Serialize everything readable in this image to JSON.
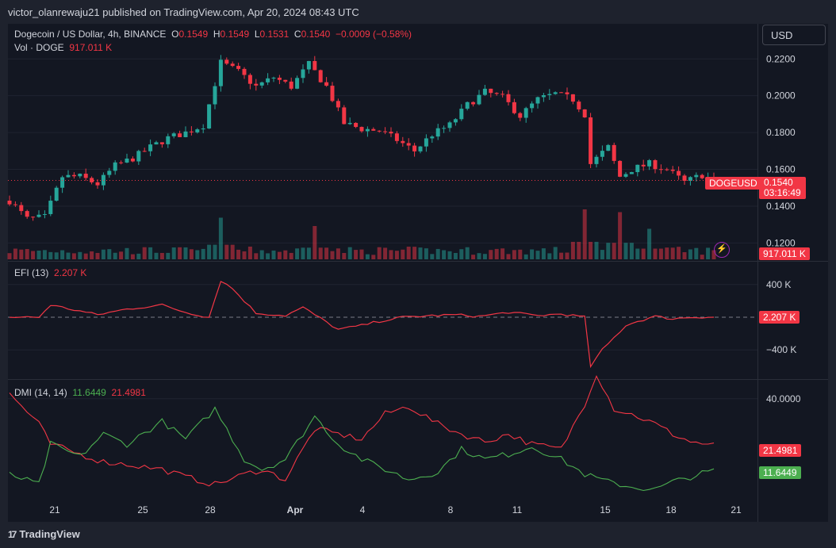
{
  "header": {
    "published": "victor_olanrewaju21 published on TradingView.com, Apr 20, 2024 08:43 UTC"
  },
  "legend": {
    "symbol": "Dogecoin / US Dollar, 4h, BINANCE",
    "o_label": "O",
    "o_value": "0.1549",
    "h_label": "H",
    "h_value": "0.1549",
    "l_label": "L",
    "l_value": "0.1531",
    "c_label": "C",
    "c_value": "0.1540",
    "change": "−0.0009 (−0.58%)",
    "vol_label": "Vol · DOGE",
    "vol_value": "917.011 K",
    "efi_label": "EFI (13)",
    "efi_value": "2.207 K",
    "dmi_label": "DMI (14, 14)",
    "dmi_plus": "11.6449",
    "dmi_minus": "21.4981"
  },
  "toolbar": {
    "currency_label": "USD"
  },
  "price_tag": {
    "symbol": "DOGEUSD",
    "price": "0.1540",
    "countdown": "03:16:49"
  },
  "volume_tag": "917.011 K",
  "efi_tag": "2.207 K",
  "dmi_tags": {
    "minus": "21.4981",
    "plus": "11.6449"
  },
  "colors": {
    "up": "#26a69a",
    "down": "#f23645",
    "efi": "#f23645",
    "dmi_plus": "#4caf50",
    "dmi_minus": "#f23645",
    "bg": "#131722"
  },
  "footer": {
    "brand": "TradingView"
  },
  "chart_data": {
    "type": "candlestick",
    "price_axis": {
      "ticks": [
        "0.2200",
        "0.2000",
        "0.1800",
        "0.1600",
        "0.1400",
        "0.1200"
      ],
      "range": [
        0.115,
        0.227
      ]
    },
    "efi_axis": {
      "ticks": [
        "400 K",
        "−400 K"
      ]
    },
    "dmi_axis": {
      "ticks": [
        "40.0000"
      ]
    },
    "x_ticks": [
      "21",
      "25",
      "28",
      "Apr",
      "4",
      "8",
      "11",
      "15",
      "18",
      "21"
    ],
    "bars": 113,
    "close_anchors": [
      [
        0,
        0.143
      ],
      [
        3,
        0.133
      ],
      [
        6,
        0.134
      ],
      [
        9,
        0.156
      ],
      [
        12,
        0.156
      ],
      [
        15,
        0.152
      ],
      [
        18,
        0.162
      ],
      [
        21,
        0.166
      ],
      [
        24,
        0.172
      ],
      [
        27,
        0.177
      ],
      [
        30,
        0.18
      ],
      [
        33,
        0.184
      ],
      [
        36,
        0.218
      ],
      [
        39,
        0.213
      ],
      [
        42,
        0.205
      ],
      [
        45,
        0.21
      ],
      [
        48,
        0.205
      ],
      [
        51,
        0.217
      ],
      [
        54,
        0.205
      ],
      [
        57,
        0.185
      ],
      [
        60,
        0.182
      ],
      [
        63,
        0.181
      ],
      [
        66,
        0.176
      ],
      [
        69,
        0.17
      ],
      [
        72,
        0.179
      ],
      [
        75,
        0.184
      ],
      [
        78,
        0.195
      ],
      [
        81,
        0.202
      ],
      [
        84,
        0.199
      ],
      [
        87,
        0.189
      ],
      [
        90,
        0.198
      ],
      [
        93,
        0.201
      ],
      [
        96,
        0.198
      ],
      [
        98,
        0.19
      ],
      [
        99,
        0.163
      ],
      [
        102,
        0.172
      ],
      [
        104,
        0.156
      ],
      [
        106,
        0.16
      ],
      [
        109,
        0.163
      ],
      [
        112,
        0.16
      ],
      [
        115,
        0.153
      ],
      [
        118,
        0.157
      ],
      [
        120,
        0.154
      ]
    ],
    "volume_spikes": [
      [
        36,
        0.75
      ],
      [
        52,
        0.6
      ],
      [
        98,
        0.9
      ],
      [
        104,
        0.85
      ],
      [
        109,
        0.55
      ]
    ],
    "efi_anchors": [
      [
        0,
        0
      ],
      [
        5,
        0
      ],
      [
        7,
        150
      ],
      [
        15,
        30
      ],
      [
        20,
        100
      ],
      [
        26,
        150
      ],
      [
        30,
        60
      ],
      [
        34,
        0
      ],
      [
        36,
        450
      ],
      [
        38,
        350
      ],
      [
        40,
        200
      ],
      [
        42,
        50
      ],
      [
        47,
        20
      ],
      [
        50,
        120
      ],
      [
        52,
        30
      ],
      [
        56,
        -150
      ],
      [
        60,
        -100
      ],
      [
        63,
        -50
      ],
      [
        67,
        0
      ],
      [
        72,
        20
      ],
      [
        76,
        30
      ],
      [
        80,
        10
      ],
      [
        85,
        60
      ],
      [
        90,
        20
      ],
      [
        94,
        40
      ],
      [
        98,
        0
      ],
      [
        99,
        -600
      ],
      [
        101,
        -400
      ],
      [
        103,
        -250
      ],
      [
        105,
        -100
      ],
      [
        107,
        -50
      ],
      [
        110,
        10
      ],
      [
        113,
        -20
      ],
      [
        116,
        0
      ],
      [
        120,
        2.2
      ]
    ],
    "dmi_plus_anchors": [
      [
        0,
        10
      ],
      [
        5,
        6
      ],
      [
        7,
        22
      ],
      [
        12,
        17
      ],
      [
        16,
        26
      ],
      [
        20,
        22
      ],
      [
        26,
        31
      ],
      [
        30,
        24
      ],
      [
        35,
        36
      ],
      [
        40,
        16
      ],
      [
        43,
        12
      ],
      [
        47,
        16
      ],
      [
        52,
        33
      ],
      [
        56,
        22
      ],
      [
        60,
        16
      ],
      [
        64,
        12
      ],
      [
        68,
        8
      ],
      [
        73,
        11
      ],
      [
        77,
        20
      ],
      [
        81,
        16
      ],
      [
        85,
        18
      ],
      [
        89,
        21
      ],
      [
        94,
        16
      ],
      [
        98,
        10
      ],
      [
        102,
        7
      ],
      [
        106,
        5
      ],
      [
        110,
        4
      ],
      [
        113,
        7
      ],
      [
        116,
        9
      ],
      [
        120,
        11.6
      ]
    ],
    "dmi_minus_anchors": [
      [
        0,
        42
      ],
      [
        5,
        30
      ],
      [
        7,
        22
      ],
      [
        12,
        18
      ],
      [
        16,
        15
      ],
      [
        20,
        14
      ],
      [
        26,
        12
      ],
      [
        30,
        9
      ],
      [
        35,
        6
      ],
      [
        40,
        10
      ],
      [
        43,
        12
      ],
      [
        47,
        8
      ],
      [
        52,
        28
      ],
      [
        56,
        26
      ],
      [
        60,
        24
      ],
      [
        64,
        34
      ],
      [
        68,
        37
      ],
      [
        73,
        30
      ],
      [
        77,
        26
      ],
      [
        81,
        23
      ],
      [
        85,
        26
      ],
      [
        89,
        22
      ],
      [
        94,
        20
      ],
      [
        98,
        38
      ],
      [
        100,
        50
      ],
      [
        103,
        36
      ],
      [
        107,
        33
      ],
      [
        110,
        30
      ],
      [
        113,
        26
      ],
      [
        116,
        23
      ],
      [
        120,
        21.5
      ]
    ]
  }
}
